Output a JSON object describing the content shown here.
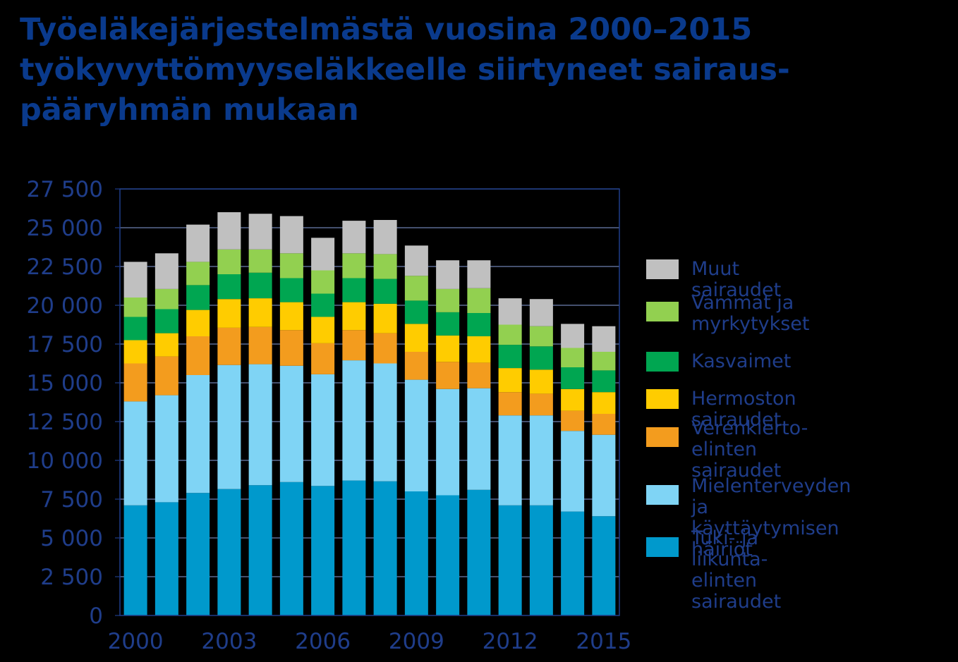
{
  "title": {
    "lines": [
      "Työeläkejärjestelmästä vuosina 2000–2015",
      "työkyvyttömyyseläkkeelle siirtyneet sairaus-",
      "pääryhmän mukaan"
    ]
  },
  "colors": {
    "background": "#000000",
    "title": "#0a3a8c",
    "axis_text": "#1f3d8a",
    "gridline": "#6e7fb0",
    "plot_border": "#1f3d8a"
  },
  "chart_data": {
    "type": "bar",
    "stacked": true,
    "title": "Työeläkejärjestelmästä vuosina 2000–2015 työkyvyttömyyseläkkeelle siirtyneet sairaus-pääryhmän mukaan",
    "xlabel": "",
    "ylabel": "",
    "ylim": [
      0,
      27500
    ],
    "yticks": [
      0,
      2500,
      5000,
      7500,
      10000,
      12500,
      15000,
      17500,
      20000,
      22500,
      25000,
      27500
    ],
    "ytick_labels": [
      "0",
      "2 500",
      "5 000",
      "7 500",
      "10 000",
      "12 500",
      "15 000",
      "17 500",
      "20 000",
      "22 500",
      "25 000",
      "27 500"
    ],
    "categories": [
      "2000",
      "2001",
      "2002",
      "2003",
      "2004",
      "2005",
      "2006",
      "2007",
      "2008",
      "2009",
      "2010",
      "2011",
      "2012",
      "2013",
      "2014",
      "2015"
    ],
    "xtick_labels": [
      "2000",
      "",
      "",
      "2003",
      "",
      "",
      "2006",
      "",
      "",
      "2009",
      "",
      "",
      "2012",
      "",
      "",
      "2015"
    ],
    "grid": true,
    "legend_position": "right",
    "series": [
      {
        "name": "Tuki- ja liikunta-\nelinten sairaudet",
        "color": "#0099cc",
        "values": [
          7100,
          7300,
          7900,
          8150,
          8400,
          8600,
          8350,
          8700,
          8650,
          8000,
          7750,
          8100,
          7100,
          7100,
          6700,
          6400
        ]
      },
      {
        "name": "Mielenterveyden ja\nkäyttäytymisen häiriöt",
        "color": "#7fd4f5",
        "values": [
          6700,
          6900,
          7600,
          8000,
          7800,
          7500,
          7200,
          7750,
          7600,
          7200,
          6850,
          6550,
          5800,
          5800,
          5200,
          5250
        ]
      },
      {
        "name": "Verenkierto-\nelinten sairaudet",
        "color": "#f39c1e",
        "values": [
          2450,
          2500,
          2500,
          2400,
          2400,
          2300,
          2000,
          1950,
          1950,
          1800,
          1750,
          1650,
          1500,
          1400,
          1300,
          1350
        ]
      },
      {
        "name": "Hermoston sairaudet",
        "color": "#ffcc00",
        "values": [
          1500,
          1500,
          1700,
          1850,
          1850,
          1800,
          1700,
          1800,
          1900,
          1800,
          1700,
          1700,
          1550,
          1550,
          1400,
          1400
        ]
      },
      {
        "name": "Kasvaimet",
        "color": "#00a651",
        "values": [
          1500,
          1550,
          1600,
          1600,
          1650,
          1550,
          1500,
          1550,
          1600,
          1500,
          1500,
          1500,
          1500,
          1500,
          1400,
          1400
        ]
      },
      {
        "name": "Vammat ja\nmyrkytykset",
        "color": "#92d050",
        "values": [
          1250,
          1300,
          1500,
          1600,
          1500,
          1600,
          1500,
          1600,
          1600,
          1600,
          1500,
          1600,
          1300,
          1300,
          1250,
          1200
        ]
      },
      {
        "name": "Muut sairaudet",
        "color": "#c0c0c0",
        "values": [
          2300,
          2300,
          2400,
          2400,
          2300,
          2400,
          2100,
          2100,
          2200,
          1950,
          1850,
          1800,
          1700,
          1750,
          1550,
          1650
        ]
      }
    ]
  }
}
